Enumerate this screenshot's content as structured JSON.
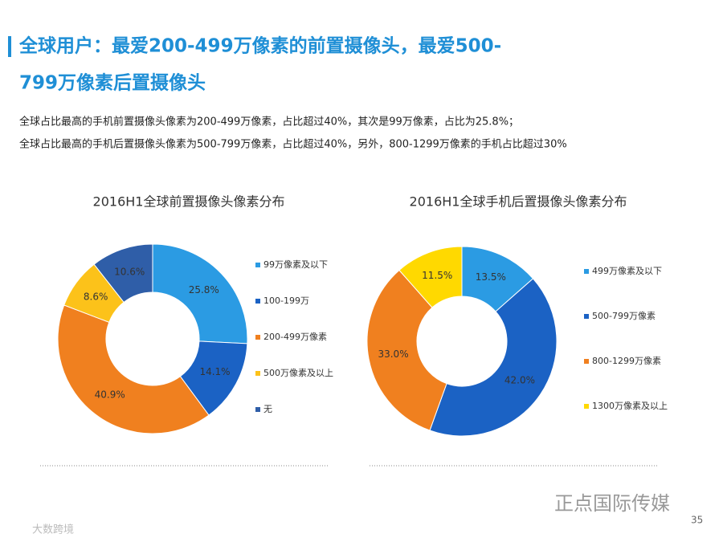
{
  "header": {
    "title_lines": [
      "全球用户：最爱200-499万像素的前置摄像头，最爱500-",
      "799万像素后置摄像头"
    ],
    "description": [
      "全球占比最高的手机前置摄像头像素为200-499万像素，占比超过40%，其次是99万像素，占比为25.8%；",
      "全球占比最高的手机后置摄像头像素为500-799万像素，占比超过40%，另外，800-1299万像素的手机占比超过30%"
    ]
  },
  "chart_data": [
    {
      "type": "donut",
      "title": "2016H1全球前置摄像头像素分布",
      "categories": [
        "99万像素及以下",
        "100-199万",
        "200-499万像素",
        "500万像素及以上",
        "无"
      ],
      "values": [
        25.8,
        14.1,
        40.9,
        8.6,
        10.6
      ],
      "value_labels": [
        "25.8%",
        "14.1%",
        "40.9%",
        "8.6%",
        "10.6%"
      ],
      "colors": [
        "#2b9be3",
        "#1b62c4",
        "#f0801f",
        "#fcc21a",
        "#2f5ea8"
      ]
    },
    {
      "type": "donut",
      "title": "2016H1全球手机后置摄像头像素分布",
      "categories": [
        "499万像素及以下",
        "500-799万像素",
        "800-1299万像素",
        "1300万像素及以上"
      ],
      "values": [
        13.5,
        42,
        33,
        11.5
      ],
      "value_labels": [
        "13.5%",
        "42.0%",
        "33.0%",
        "11.5%"
      ],
      "colors": [
        "#2b9be3",
        "#1b62c4",
        "#f0801f",
        "#ffd900"
      ]
    }
  ],
  "footer": {
    "brand": "正点国际传媒",
    "page": "35",
    "watermark": "大数跨境"
  }
}
